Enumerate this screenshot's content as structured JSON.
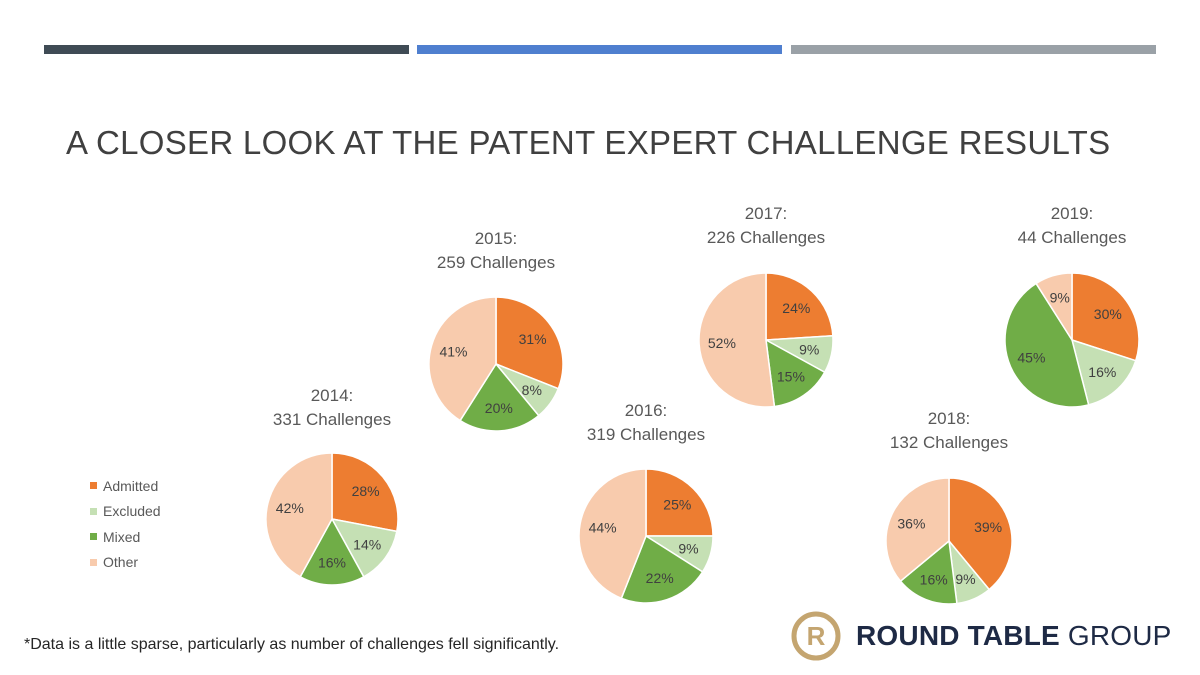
{
  "slide": {
    "title": "A CLOSER LOOK AT THE PATENT EXPERT CHALLENGE RESULTS",
    "footnote": "*Data is a little sparse, particularly as number of challenges fell significantly.",
    "header_bar_colors": [
      "#3f4b55",
      "#4f7fcf",
      "#9aa1a7"
    ]
  },
  "logo": {
    "mark": "R",
    "name_bold": "ROUND TABLE",
    "name_regular": " GROUP",
    "mark_color": "#c4a570",
    "text_color": "#1e2a45"
  },
  "legend": {
    "items": [
      {
        "label": "Admitted",
        "color": "#ed7d31"
      },
      {
        "label": "Excluded",
        "color": "#c5e0b4"
      },
      {
        "label": "Mixed",
        "color": "#70ad47"
      },
      {
        "label": "Other",
        "color": "#f8cbad"
      }
    ]
  },
  "chart_data": [
    {
      "type": "pie",
      "title": "2014:",
      "subtitle": "331 Challenges",
      "categories": [
        "Admitted",
        "Excluded",
        "Mixed",
        "Other"
      ],
      "values": [
        28,
        14,
        16,
        42
      ],
      "labels": [
        "28%",
        "14%",
        "16%",
        "42%"
      ]
    },
    {
      "type": "pie",
      "title": "2015:",
      "subtitle": "259 Challenges",
      "categories": [
        "Admitted",
        "Excluded",
        "Mixed",
        "Other"
      ],
      "values": [
        31,
        8,
        20,
        41
      ],
      "labels": [
        "31%",
        "8%",
        "20%",
        "41%"
      ]
    },
    {
      "type": "pie",
      "title": "2016:",
      "subtitle": "319 Challenges",
      "categories": [
        "Admitted",
        "Excluded",
        "Mixed",
        "Other"
      ],
      "values": [
        25,
        9,
        22,
        44
      ],
      "labels": [
        "25%",
        "9%",
        "22%",
        "44%"
      ]
    },
    {
      "type": "pie",
      "title": "2017:",
      "subtitle": "226 Challenges",
      "categories": [
        "Admitted",
        "Excluded",
        "Mixed",
        "Other"
      ],
      "values": [
        24,
        9,
        15,
        52
      ],
      "labels": [
        "24%",
        "9%",
        "15%",
        "52%"
      ]
    },
    {
      "type": "pie",
      "title": "2018:",
      "subtitle": "132 Challenges",
      "categories": [
        "Admitted",
        "Excluded",
        "Mixed",
        "Other"
      ],
      "values": [
        39,
        9,
        16,
        36
      ],
      "labels": [
        "39%",
        "9%",
        "16%",
        "36%"
      ]
    },
    {
      "type": "pie",
      "title": "2019:",
      "subtitle": "44 Challenges",
      "categories": [
        "Admitted",
        "Excluded",
        "Mixed",
        "Other"
      ],
      "values": [
        30,
        16,
        45,
        9
      ],
      "labels": [
        "30%",
        "16%",
        "45%",
        "9%"
      ]
    }
  ]
}
